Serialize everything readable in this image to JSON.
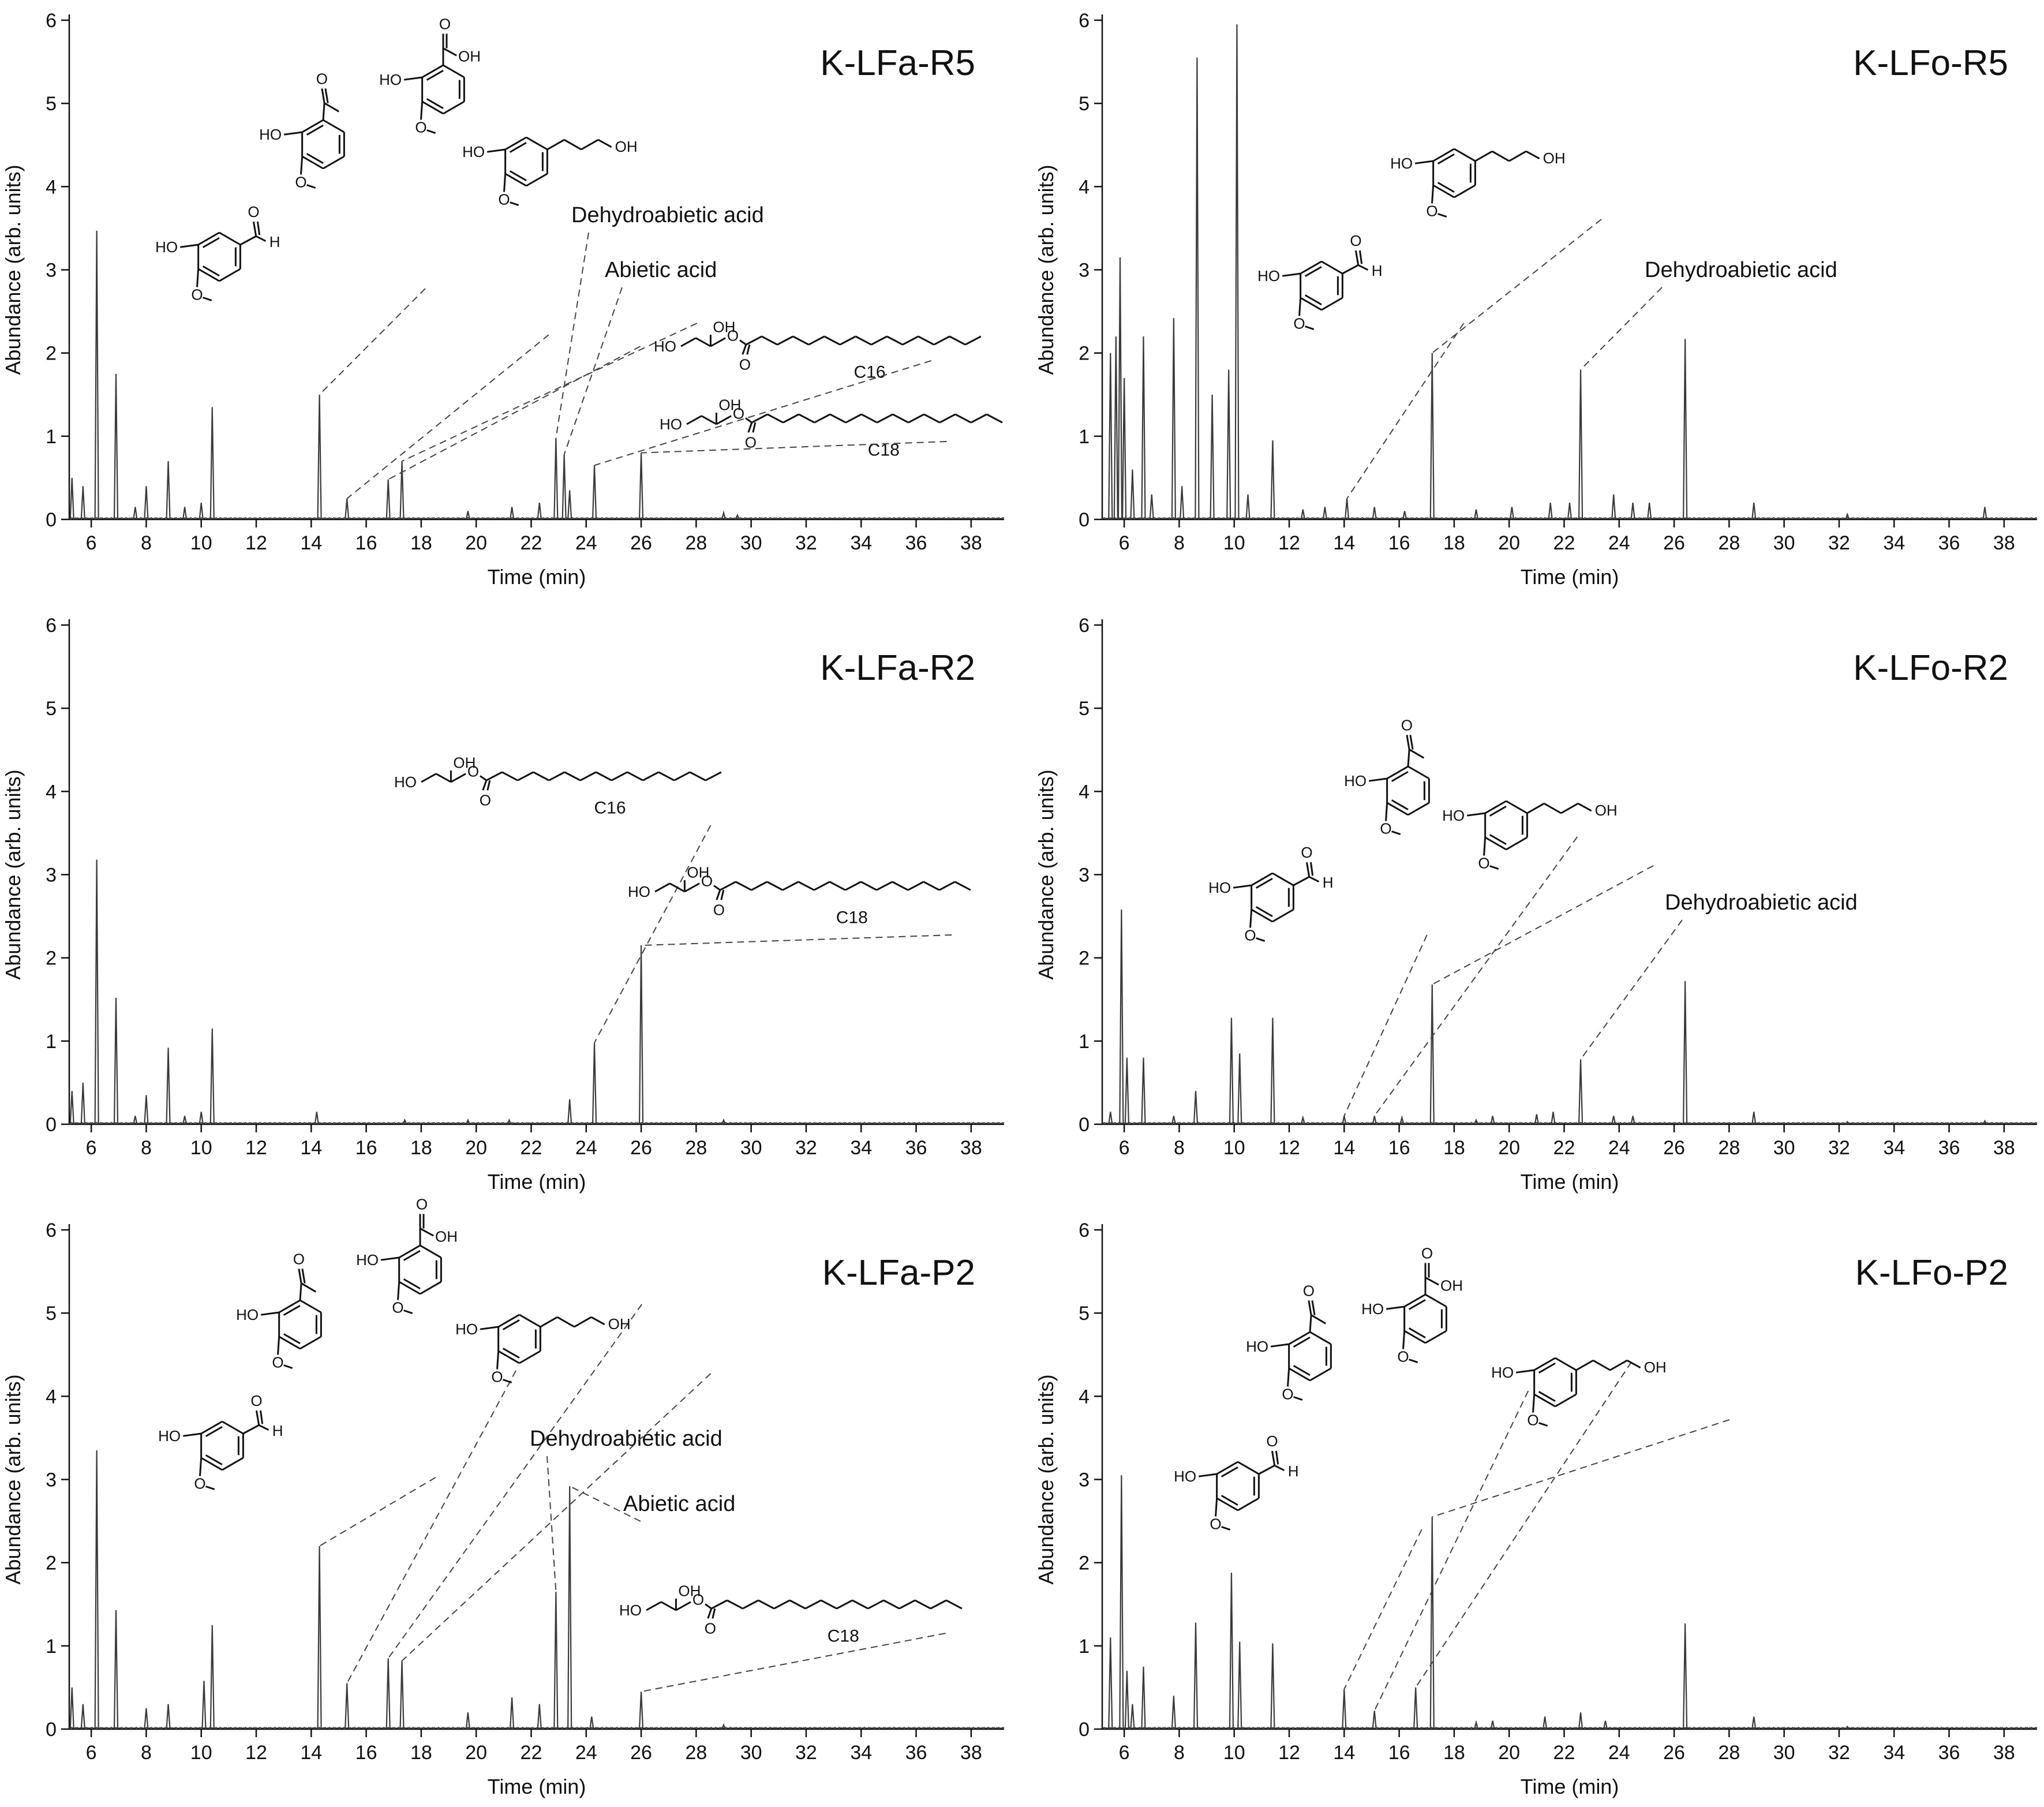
{
  "figure": {
    "xlabel": "Time (min)",
    "ylabel": "Abundance (arb. units)"
  },
  "chart_data": [
    {
      "type": "line",
      "title": "K-LFa-R5",
      "xlabel": "Time (min)",
      "ylabel": "Abundance (arb. units)",
      "xlim": [
        5.2,
        39.2
      ],
      "ylim": [
        0,
        6
      ],
      "xticks": [
        "6",
        "8",
        "10",
        "12",
        "14",
        "16",
        "18",
        "20",
        "22",
        "24",
        "26",
        "28",
        "30",
        "32",
        "34",
        "36",
        "38"
      ],
      "yticks": [
        "0",
        "1",
        "2",
        "3",
        "4",
        "5",
        "6"
      ],
      "peaks": [
        [
          5.3,
          0.5
        ],
        [
          5.7,
          0.4
        ],
        [
          6.2,
          3.47
        ],
        [
          6.9,
          1.75
        ],
        [
          7.6,
          0.15
        ],
        [
          8.0,
          0.4
        ],
        [
          8.8,
          0.7
        ],
        [
          9.4,
          0.15
        ],
        [
          10.0,
          0.2
        ],
        [
          10.4,
          1.35
        ],
        [
          14.3,
          1.5
        ],
        [
          15.3,
          0.25
        ],
        [
          16.8,
          0.48
        ],
        [
          17.3,
          0.7
        ],
        [
          19.7,
          0.1
        ],
        [
          21.3,
          0.15
        ],
        [
          22.3,
          0.2
        ],
        [
          22.9,
          0.98
        ],
        [
          23.2,
          0.78
        ],
        [
          23.4,
          0.35
        ],
        [
          24.3,
          0.65
        ],
        [
          26.0,
          0.8
        ],
        [
          29.0,
          0.08
        ],
        [
          29.5,
          0.05
        ]
      ],
      "annotations": [
        {
          "kind": "text",
          "label": "Dehydroabietic acid",
          "x": 22.9
        },
        {
          "kind": "text",
          "label": "Abietic acid",
          "x": 23.2
        },
        {
          "kind": "molecule",
          "molecule": "vanillin",
          "x": 14.3
        },
        {
          "kind": "molecule",
          "molecule": "acetovanillone",
          "x": 15.3
        },
        {
          "kind": "molecule",
          "molecule": "vanillic acid",
          "x": 16.8
        },
        {
          "kind": "molecule",
          "molecule": "dihydroconiferyl alcohol",
          "x": 17.3
        },
        {
          "kind": "molecule",
          "molecule": "monopalmitin",
          "chain_label": "C16",
          "x": 24.3
        },
        {
          "kind": "molecule",
          "molecule": "monostearin",
          "chain_label": "C18",
          "x": 26.0
        }
      ]
    },
    {
      "type": "line",
      "title": "K-LFo-R5",
      "xlabel": "Time (min)",
      "ylabel": "Abundance (arb. units)",
      "xlim": [
        5.2,
        39.2
      ],
      "ylim": [
        0,
        6
      ],
      "xticks": [
        "6",
        "8",
        "10",
        "12",
        "14",
        "16",
        "18",
        "20",
        "22",
        "24",
        "26",
        "28",
        "30",
        "32",
        "34",
        "36",
        "38"
      ],
      "yticks": [
        "0",
        "1",
        "2",
        "3",
        "4",
        "5",
        "6"
      ],
      "peaks": [
        [
          5.5,
          2.0
        ],
        [
          5.7,
          2.2
        ],
        [
          5.85,
          3.15
        ],
        [
          6.0,
          1.7
        ],
        [
          6.3,
          0.6
        ],
        [
          6.7,
          2.2
        ],
        [
          7.0,
          0.3
        ],
        [
          7.8,
          2.42
        ],
        [
          8.1,
          0.4
        ],
        [
          8.65,
          5.55
        ],
        [
          9.2,
          1.5
        ],
        [
          9.8,
          1.8
        ],
        [
          10.1,
          5.95
        ],
        [
          10.5,
          0.3
        ],
        [
          11.4,
          0.95
        ],
        [
          12.5,
          0.12
        ],
        [
          13.3,
          0.15
        ],
        [
          14.1,
          0.25
        ],
        [
          15.1,
          0.15
        ],
        [
          16.2,
          0.1
        ],
        [
          17.2,
          2.0
        ],
        [
          18.8,
          0.12
        ],
        [
          20.1,
          0.15
        ],
        [
          21.5,
          0.2
        ],
        [
          22.2,
          0.2
        ],
        [
          22.6,
          1.8
        ],
        [
          23.8,
          0.3
        ],
        [
          24.5,
          0.2
        ],
        [
          25.1,
          0.2
        ],
        [
          26.4,
          2.17
        ],
        [
          28.9,
          0.2
        ],
        [
          32.3,
          0.06
        ],
        [
          37.3,
          0.15
        ]
      ],
      "annotations": [
        {
          "kind": "text",
          "label": "Dehydroabietic acid",
          "x": 22.6
        },
        {
          "kind": "molecule",
          "molecule": "vanillin",
          "x": 14.1
        },
        {
          "kind": "molecule",
          "molecule": "dihydroconiferyl alcohol",
          "x": 17.2
        }
      ]
    },
    {
      "type": "line",
      "title": "K-LFa-R2",
      "xlabel": "Time (min)",
      "ylabel": "Abundance (arb. units)",
      "xlim": [
        5.2,
        39.2
      ],
      "ylim": [
        0,
        6
      ],
      "xticks": [
        "6",
        "8",
        "10",
        "12",
        "14",
        "16",
        "18",
        "20",
        "22",
        "24",
        "26",
        "28",
        "30",
        "32",
        "34",
        "36",
        "38"
      ],
      "yticks": [
        "0",
        "1",
        "2",
        "3",
        "4",
        "5",
        "6"
      ],
      "peaks": [
        [
          5.3,
          0.4
        ],
        [
          5.7,
          0.5
        ],
        [
          6.2,
          3.18
        ],
        [
          6.9,
          1.52
        ],
        [
          7.6,
          0.1
        ],
        [
          8.0,
          0.35
        ],
        [
          8.8,
          0.92
        ],
        [
          9.4,
          0.1
        ],
        [
          10.0,
          0.15
        ],
        [
          10.4,
          1.15
        ],
        [
          14.2,
          0.15
        ],
        [
          17.4,
          0.05
        ],
        [
          19.7,
          0.05
        ],
        [
          21.2,
          0.05
        ],
        [
          23.4,
          0.3
        ],
        [
          24.3,
          0.98
        ],
        [
          26.0,
          2.15
        ],
        [
          29.0,
          0.05
        ]
      ],
      "annotations": [
        {
          "kind": "molecule",
          "molecule": "monopalmitin",
          "chain_label": "C16",
          "x": 24.3
        },
        {
          "kind": "molecule",
          "molecule": "monostearin",
          "chain_label": "C18",
          "x": 26.0
        }
      ]
    },
    {
      "type": "line",
      "title": "K-LFo-R2",
      "xlabel": "Time (min)",
      "ylabel": "Abundance (arb. units)",
      "xlim": [
        5.2,
        39.2
      ],
      "ylim": [
        0,
        6
      ],
      "xticks": [
        "6",
        "8",
        "10",
        "12",
        "14",
        "16",
        "18",
        "20",
        "22",
        "24",
        "26",
        "28",
        "30",
        "32",
        "34",
        "36",
        "38"
      ],
      "yticks": [
        "0",
        "1",
        "2",
        "3",
        "4",
        "5",
        "6"
      ],
      "peaks": [
        [
          5.5,
          0.15
        ],
        [
          5.9,
          2.58
        ],
        [
          6.1,
          0.8
        ],
        [
          6.7,
          0.8
        ],
        [
          7.8,
          0.1
        ],
        [
          8.6,
          0.4
        ],
        [
          9.9,
          1.28
        ],
        [
          10.2,
          0.85
        ],
        [
          11.4,
          1.28
        ],
        [
          12.5,
          0.08
        ],
        [
          14.0,
          0.1
        ],
        [
          15.1,
          0.1
        ],
        [
          16.1,
          0.08
        ],
        [
          17.2,
          1.68
        ],
        [
          18.8,
          0.05
        ],
        [
          19.4,
          0.1
        ],
        [
          21.0,
          0.12
        ],
        [
          21.6,
          0.15
        ],
        [
          22.6,
          0.78
        ],
        [
          23.8,
          0.1
        ],
        [
          24.5,
          0.1
        ],
        [
          26.4,
          1.72
        ],
        [
          28.9,
          0.15
        ],
        [
          32.3,
          0.03
        ],
        [
          37.3,
          0.04
        ]
      ],
      "annotations": [
        {
          "kind": "text",
          "label": "Dehydroabietic acid",
          "x": 22.6
        },
        {
          "kind": "molecule",
          "molecule": "vanillin",
          "x": 14.0
        },
        {
          "kind": "molecule",
          "molecule": "acetovanillone",
          "x": 15.1
        },
        {
          "kind": "molecule",
          "molecule": "dihydroconiferyl alcohol",
          "x": 17.2
        }
      ]
    },
    {
      "type": "line",
      "title": "K-LFa-P2",
      "xlabel": "Time (min)",
      "ylabel": "Abundance (arb. units)",
      "xlim": [
        5.2,
        39.2
      ],
      "ylim": [
        0,
        6
      ],
      "xticks": [
        "6",
        "8",
        "10",
        "12",
        "14",
        "16",
        "18",
        "20",
        "22",
        "24",
        "26",
        "28",
        "30",
        "32",
        "34",
        "36",
        "38"
      ],
      "yticks": [
        "0",
        "1",
        "2",
        "3",
        "4",
        "5",
        "6"
      ],
      "peaks": [
        [
          5.3,
          0.5
        ],
        [
          5.7,
          0.3
        ],
        [
          6.2,
          3.35
        ],
        [
          6.9,
          1.43
        ],
        [
          8.0,
          0.25
        ],
        [
          8.8,
          0.3
        ],
        [
          10.1,
          0.58
        ],
        [
          10.4,
          1.25
        ],
        [
          14.3,
          2.2
        ],
        [
          15.3,
          0.55
        ],
        [
          16.8,
          0.85
        ],
        [
          17.3,
          0.82
        ],
        [
          19.7,
          0.2
        ],
        [
          21.3,
          0.38
        ],
        [
          22.3,
          0.3
        ],
        [
          22.9,
          1.65
        ],
        [
          23.4,
          2.92
        ],
        [
          24.2,
          0.15
        ],
        [
          26.0,
          0.45
        ],
        [
          29.0,
          0.05
        ]
      ],
      "annotations": [
        {
          "kind": "text",
          "label": "Dehydroabietic acid",
          "x": 22.9
        },
        {
          "kind": "text",
          "label": "Abietic acid",
          "x": 23.4
        },
        {
          "kind": "molecule",
          "molecule": "vanillin",
          "x": 14.3
        },
        {
          "kind": "molecule",
          "molecule": "acetovanillone",
          "x": 15.3
        },
        {
          "kind": "molecule",
          "molecule": "vanillic acid",
          "x": 16.8
        },
        {
          "kind": "molecule",
          "molecule": "dihydroconiferyl alcohol",
          "x": 17.3
        },
        {
          "kind": "molecule",
          "molecule": "monostearin",
          "chain_label": "C18",
          "x": 26.0
        }
      ]
    },
    {
      "type": "line",
      "title": "K-LFo-P2",
      "xlabel": "Time (min)",
      "ylabel": "Abundance (arb. units)",
      "xlim": [
        5.2,
        39.2
      ],
      "ylim": [
        0,
        6
      ],
      "xticks": [
        "6",
        "8",
        "10",
        "12",
        "14",
        "16",
        "18",
        "20",
        "22",
        "24",
        "26",
        "28",
        "30",
        "32",
        "34",
        "36",
        "38"
      ],
      "yticks": [
        "0",
        "1",
        "2",
        "3",
        "4",
        "5",
        "6"
      ],
      "peaks": [
        [
          5.5,
          1.1
        ],
        [
          5.9,
          3.05
        ],
        [
          6.1,
          0.7
        ],
        [
          6.3,
          0.3
        ],
        [
          6.7,
          0.75
        ],
        [
          7.8,
          0.4
        ],
        [
          8.6,
          1.28
        ],
        [
          9.9,
          1.88
        ],
        [
          10.2,
          1.05
        ],
        [
          11.4,
          1.03
        ],
        [
          14.0,
          0.48
        ],
        [
          15.1,
          0.22
        ],
        [
          16.6,
          0.5
        ],
        [
          17.2,
          2.55
        ],
        [
          18.8,
          0.08
        ],
        [
          19.4,
          0.1
        ],
        [
          21.3,
          0.15
        ],
        [
          22.6,
          0.2
        ],
        [
          23.5,
          0.1
        ],
        [
          26.4,
          1.27
        ],
        [
          28.9,
          0.15
        ],
        [
          32.3,
          0.03
        ]
      ],
      "annotations": [
        {
          "kind": "molecule",
          "molecule": "vanillin",
          "x": 14.0
        },
        {
          "kind": "molecule",
          "molecule": "acetovanillone",
          "x": 15.1
        },
        {
          "kind": "molecule",
          "molecule": "vanillic acid",
          "x": 16.6
        },
        {
          "kind": "molecule",
          "molecule": "dihydroconiferyl alcohol",
          "x": 17.2
        }
      ]
    }
  ],
  "chem_labels": {
    "ho": "HO",
    "oh": "OH",
    "o": "O",
    "h": "H"
  },
  "colors": {
    "trace": "#3a3a3a",
    "axis": "#111111",
    "leader": "#444444",
    "background": "#ffffff"
  }
}
